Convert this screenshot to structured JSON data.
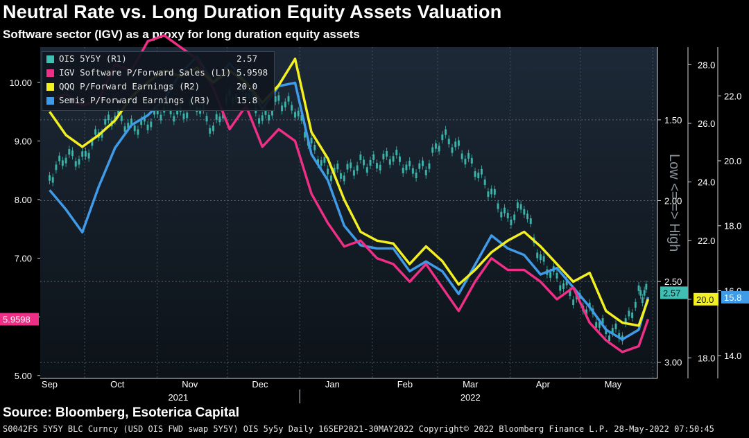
{
  "title": "Neutral Rate vs. Long Duration Equity Assets Valuation",
  "subtitle": "Software sector (IGV) as a proxy for long duration equity assets",
  "source": "Source: Bloomberg, Esoterica Capital",
  "footer": "S0042FS 5Y5Y BLC Curncy (USD OIS FWD swap 5Y5Y) OIS 5y5y  Daily 16SEP2021-30MAY2022 Copyright© 2022 Bloomberg Finance L.P. 28-May-2022 07:50:45",
  "colors": {
    "ois": "#3fbfb4",
    "igv": "#ef2e86",
    "qqq": "#f3f022",
    "semis": "#3f9be8"
  },
  "chart_data": {
    "type": "line",
    "x": [
      "2021-09-16",
      "2021-09-23",
      "2021-09-30",
      "2021-10-07",
      "2021-10-14",
      "2021-10-21",
      "2021-10-28",
      "2021-11-04",
      "2021-11-11",
      "2021-11-18",
      "2021-11-25",
      "2021-12-02",
      "2021-12-09",
      "2021-12-16",
      "2021-12-23",
      "2021-12-30",
      "2022-01-06",
      "2022-01-13",
      "2022-01-20",
      "2022-01-27",
      "2022-02-03",
      "2022-02-10",
      "2022-02-17",
      "2022-02-24",
      "2022-03-03",
      "2022-03-10",
      "2022-03-17",
      "2022-03-24",
      "2022-03-31",
      "2022-04-07",
      "2022-04-14",
      "2022-04-21",
      "2022-04-28",
      "2022-05-05",
      "2022-05-12",
      "2022-05-19",
      "2022-05-26",
      "2022-05-30"
    ],
    "x_ticks": [
      "Sep",
      "Oct",
      "Nov",
      "Dec",
      "Jan",
      "Feb",
      "Mar",
      "Apr",
      "May"
    ],
    "year_labels": [
      "2021",
      "2022"
    ],
    "axes": {
      "L1": {
        "ticks": [
          "10.00",
          "9.00",
          "8.00",
          "7.00",
          "6.00",
          "5.00"
        ],
        "range": [
          4.95,
          10.6
        ]
      },
      "R1": {
        "ticks": [
          "1.50",
          "2.00",
          "2.50",
          "3.00"
        ],
        "range": [
          3.1,
          1.05
        ],
        "inverted": true,
        "label": "Low <= => High"
      },
      "R2": {
        "ticks": [
          "28.0",
          "26.0",
          "24.0",
          "22.0",
          "20.0",
          "18.0"
        ],
        "range": [
          17.3,
          28.6
        ]
      },
      "R3": {
        "ticks": [
          "22.0",
          "20.0",
          "18.0",
          "16.0",
          "14.0"
        ],
        "range": [
          13.3,
          23.5
        ]
      }
    },
    "series": [
      {
        "name": "OIS 5Y5Y (R1)",
        "value_label": "2.57",
        "axis": "R1",
        "values": [
          1.86,
          1.72,
          1.75,
          1.58,
          1.47,
          1.55,
          1.52,
          1.43,
          1.47,
          1.4,
          1.56,
          1.36,
          1.31,
          1.51,
          1.38,
          1.43,
          1.66,
          1.82,
          1.83,
          1.77,
          1.77,
          1.72,
          1.81,
          1.8,
          1.6,
          1.68,
          1.8,
          1.95,
          2.12,
          2.03,
          2.37,
          2.48,
          2.59,
          2.68,
          2.81,
          2.82,
          2.58,
          2.57
        ]
      },
      {
        "name": "IGV Software P/Forward Sales (L1)",
        "value_label": "5.9598",
        "axis": "L1",
        "values": [
          9.7,
          9.8,
          9.6,
          9.7,
          10.3,
          10.2,
          10.7,
          10.8,
          10.6,
          10.4,
          9.9,
          9.2,
          9.6,
          8.9,
          9.2,
          9.0,
          8.1,
          7.6,
          7.2,
          7.3,
          7.0,
          6.9,
          6.6,
          6.9,
          6.5,
          6.1,
          6.6,
          7.0,
          6.8,
          6.8,
          6.6,
          6.3,
          6.5,
          5.9,
          5.6,
          5.4,
          5.5,
          5.96
        ]
      },
      {
        "name": "QQQ P/Forward Earnings (R2)",
        "value_label": "20.0",
        "axis": "R2",
        "values": [
          26.4,
          25.6,
          25.2,
          25.6,
          26.1,
          26.9,
          27.4,
          27.8,
          27.6,
          27.9,
          27.4,
          27.8,
          27.4,
          26.7,
          27.3,
          28.2,
          25.7,
          24.8,
          23.4,
          22.3,
          22.0,
          21.9,
          21.2,
          21.8,
          21.3,
          20.5,
          21.0,
          21.6,
          22.0,
          22.3,
          21.8,
          21.2,
          20.6,
          20.9,
          19.6,
          19.2,
          19.1,
          20.0
        ]
      },
      {
        "name": "Semis P/Forward Earnings (R3)",
        "value_label": "15.8",
        "axis": "R3",
        "values": [
          19.1,
          18.5,
          17.8,
          19.2,
          20.4,
          21.1,
          21.4,
          21.9,
          22.7,
          23.2,
          22.4,
          23.0,
          22.4,
          21.6,
          22.3,
          22.4,
          20.2,
          19.4,
          18.0,
          17.4,
          17.3,
          17.3,
          16.6,
          16.9,
          16.6,
          15.9,
          16.8,
          17.7,
          17.3,
          17.1,
          16.5,
          16.7,
          16.1,
          15.5,
          14.8,
          14.5,
          14.8,
          15.8
        ]
      }
    ]
  }
}
